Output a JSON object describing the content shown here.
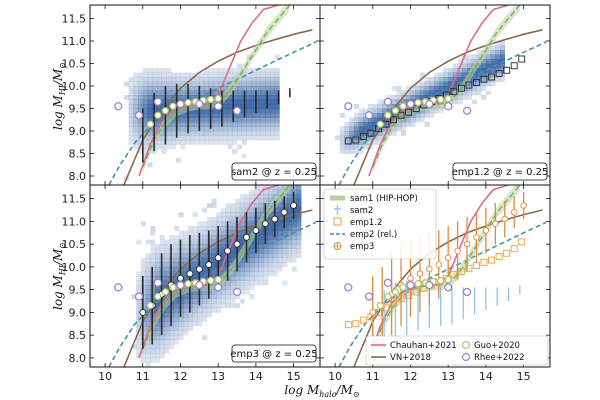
{
  "chart_data": {
    "type": "scatter",
    "xlim": [
      9.6,
      15.7
    ],
    "ylim": [
      7.8,
      11.8
    ],
    "xticks": [
      "10",
      "11",
      "12",
      "13",
      "14",
      "15"
    ],
    "yticks": [
      "8.0",
      "8.5",
      "9.0",
      "9.5",
      "10.0",
      "10.5",
      "11.0",
      "11.5"
    ],
    "xlabel_main": "log M",
    "xlabel_sub": "halo",
    "xlabel_tail": "/M",
    "ylabel_main": "log M",
    "ylabel_sub": "HI",
    "ylabel_tail": "/M",
    "sun": "⊙",
    "colors": {
      "hist": "#2f5c9e",
      "sam1": "#b5d39a",
      "sam2": "#8fc2e8",
      "emp12": "#e6a23c",
      "emp2": "#3f94a8",
      "emp3": "#6b6b6b",
      "chauhan": "#e06a8a",
      "vn": "#8a6a4a",
      "guo": "#b3c76a",
      "rhee": "#9a82d0",
      "median": "#2a2a2a"
    },
    "panels": [
      {
        "id": "sam2",
        "label": "sam2 @ z = 0.25"
      },
      {
        "id": "emp12",
        "label": "emp1.2 @ z = 0.25"
      },
      {
        "id": "emp3",
        "label": "emp3 @ z = 0.25"
      },
      {
        "id": "combined",
        "label": ""
      }
    ],
    "legend_top": [
      {
        "key": "sam1",
        "text": "sam1 (HIP-HOP)"
      },
      {
        "key": "sam2",
        "text": "sam2"
      },
      {
        "key": "emp12",
        "text": "emp1.2"
      },
      {
        "key": "emp2",
        "text": "emp2 (rel.)"
      },
      {
        "key": "emp3",
        "text": "emp3"
      }
    ],
    "legend_bottom": [
      {
        "key": "chauhan",
        "text": "Chauhan+2021"
      },
      {
        "key": "guo",
        "text": "Guo+2020"
      },
      {
        "key": "vn",
        "text": "VN+2018"
      },
      {
        "key": "rhee",
        "text": "Rhee+2022"
      }
    ],
    "series": {
      "vn2018": {
        "x": [
          10.5,
          11.0,
          11.5,
          12.0,
          12.5,
          13.0,
          13.5,
          14.0,
          14.5,
          15.0,
          15.5
        ],
        "y": [
          7.8,
          8.8,
          9.45,
          9.95,
          10.3,
          10.55,
          10.75,
          10.9,
          11.03,
          11.15,
          11.25
        ]
      },
      "chauhan2021": {
        "x": [
          10.9,
          11.2,
          11.5,
          11.8,
          12.1,
          12.4,
          12.7,
          13.0,
          13.3,
          13.6,
          13.9,
          14.2,
          14.6
        ],
        "y": [
          8.0,
          8.7,
          9.2,
          9.45,
          9.55,
          9.6,
          9.6,
          9.8,
          10.4,
          11.0,
          11.4,
          11.7,
          11.8
        ]
      },
      "emp2_rel": {
        "x": [
          10.1,
          10.4,
          10.8,
          11.2,
          11.6,
          12.0,
          12.5,
          13.0,
          13.5,
          14.0,
          14.5,
          15.0,
          15.6
        ],
        "y": [
          7.8,
          8.25,
          8.75,
          9.1,
          9.35,
          9.55,
          9.75,
          9.95,
          10.15,
          10.35,
          10.55,
          10.75,
          10.98
        ]
      },
      "sam1": {
        "x": [
          11.0,
          11.3,
          11.6,
          11.9,
          12.2,
          12.5,
          12.8,
          13.1,
          13.4,
          13.7,
          14.0,
          14.3,
          14.6,
          14.9
        ],
        "y": [
          8.2,
          8.8,
          9.2,
          9.45,
          9.55,
          9.6,
          9.6,
          9.7,
          10.0,
          10.4,
          10.8,
          11.2,
          11.5,
          11.8
        ]
      },
      "guo2020": {
        "x": [
          11.2,
          11.4,
          11.6,
          11.8,
          12.0,
          12.2,
          12.4,
          12.6,
          12.8,
          13.0
        ],
        "y": [
          9.15,
          9.35,
          9.45,
          9.55,
          9.6,
          9.63,
          9.65,
          9.68,
          9.7,
          9.72
        ]
      },
      "rhee2022": {
        "x": [
          10.35,
          10.9,
          11.4,
          12.0,
          12.5,
          13.0,
          13.5
        ],
        "y": [
          9.55,
          9.35,
          9.65,
          9.6,
          9.6,
          9.55,
          9.45
        ]
      },
      "sam2_median": {
        "x": [
          11.0,
          11.3,
          11.6,
          11.9,
          12.2,
          12.5,
          12.8,
          13.1,
          13.4,
          13.7,
          14.0,
          14.3,
          14.6,
          14.9
        ],
        "y": [
          8.9,
          9.2,
          9.35,
          9.45,
          9.5,
          9.5,
          9.5,
          9.5,
          9.55,
          9.6,
          9.65,
          9.7,
          9.75,
          9.85
        ],
        "err": [
          0.6,
          0.65,
          0.65,
          0.6,
          0.55,
          0.5,
          0.45,
          0.4,
          0.35,
          0.3,
          0.25,
          0.2,
          0.15,
          0.1
        ]
      },
      "emp12_median": {
        "x": [
          10.35,
          10.55,
          10.75,
          10.95,
          11.15,
          11.35,
          11.55,
          11.75,
          11.95,
          12.15,
          12.35,
          12.55,
          12.75,
          12.95,
          13.15,
          13.35,
          13.55,
          13.75,
          13.95,
          14.15,
          14.35,
          14.55,
          14.75,
          14.95
        ],
        "y": [
          8.78,
          8.8,
          8.88,
          8.95,
          9.05,
          9.15,
          9.25,
          9.35,
          9.42,
          9.5,
          9.58,
          9.65,
          9.72,
          9.8,
          9.88,
          9.95,
          10.02,
          10.08,
          10.15,
          10.2,
          10.28,
          10.35,
          10.45,
          10.6
        ]
      },
      "emp3_median": {
        "x": [
          11.0,
          11.25,
          11.5,
          11.75,
          12.0,
          12.25,
          12.5,
          12.75,
          13.0,
          13.25,
          13.5,
          13.75,
          14.0,
          14.25,
          14.5,
          14.75,
          15.0
        ],
        "y": [
          9.0,
          9.15,
          9.4,
          9.6,
          9.75,
          9.85,
          9.95,
          10.05,
          10.2,
          10.35,
          10.5,
          10.65,
          10.8,
          10.95,
          11.05,
          11.2,
          11.35
        ],
        "err": [
          0.8,
          0.85,
          0.9,
          0.9,
          0.85,
          0.85,
          0.8,
          0.75,
          0.7,
          0.65,
          0.6,
          0.55,
          0.5,
          0.45,
          0.4,
          0.35,
          0.3
        ]
      }
    }
  }
}
